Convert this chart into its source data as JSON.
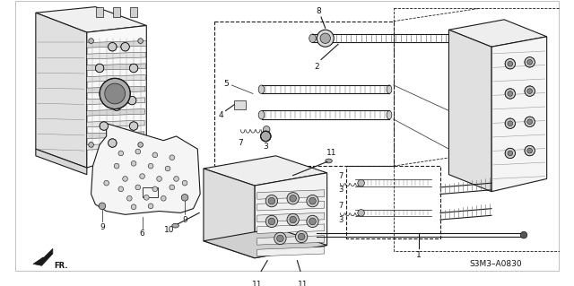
{
  "bg_color": "#ffffff",
  "fig_width": 6.4,
  "fig_height": 3.19,
  "dpi": 100,
  "line_color": "#1a1a1a",
  "text_color": "#111111",
  "diagram_ref": "S3M3–A0830",
  "gray_fill": "#e8e8e8",
  "dark_gray": "#555555",
  "mid_gray": "#999999",
  "light_gray": "#cccccc"
}
